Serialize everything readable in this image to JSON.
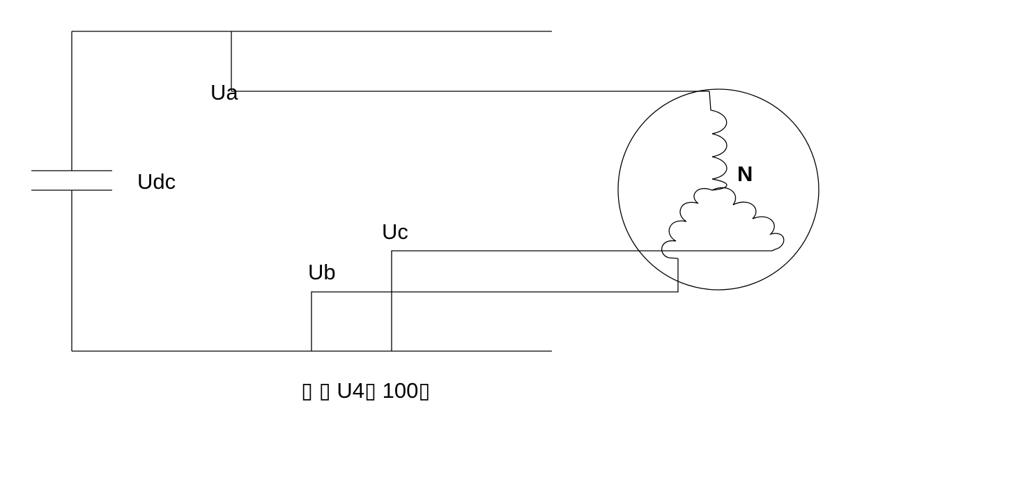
{
  "labels": {
    "ua": "Ua",
    "udc": "Udc",
    "ub": "Ub",
    "uc": "Uc",
    "n": "N",
    "caption": "▯ ▯ U4▯ 100▯"
  },
  "colors": {
    "line": "#000000",
    "background": "#ffffff"
  }
}
